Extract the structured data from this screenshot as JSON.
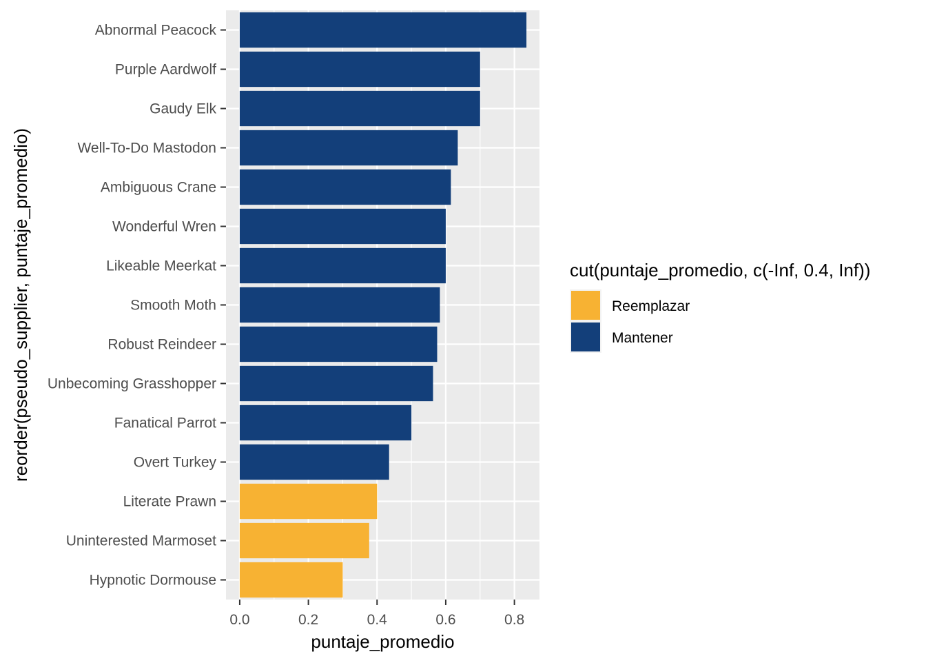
{
  "chart_data": {
    "type": "bar",
    "orientation": "horizontal",
    "categories": [
      "Abnormal Peacock",
      "Purple Aardwolf",
      "Gaudy Elk",
      "Well-To-Do Mastodon",
      "Ambiguous Crane",
      "Wonderful Wren",
      "Likeable Meerkat",
      "Smooth Moth",
      "Robust Reindeer",
      "Unbecoming Grasshopper",
      "Fanatical Parrot",
      "Overt Turkey",
      "Literate Prawn",
      "Uninterested Marmoset",
      "Hypnotic Dormouse"
    ],
    "values": [
      0.835,
      0.7,
      0.7,
      0.635,
      0.615,
      0.6,
      0.6,
      0.583,
      0.575,
      0.563,
      0.5,
      0.435,
      0.4,
      0.377,
      0.3
    ],
    "groups": [
      "Mantener",
      "Mantener",
      "Mantener",
      "Mantener",
      "Mantener",
      "Mantener",
      "Mantener",
      "Mantener",
      "Mantener",
      "Mantener",
      "Mantener",
      "Mantener",
      "Reemplazar",
      "Reemplazar",
      "Reemplazar"
    ],
    "xlabel": "puntaje_promedio",
    "ylabel": "reorder(pseudo_supplier, puntaje_promedio)",
    "xlim": [
      -0.04,
      0.873
    ],
    "xticks": [
      0.0,
      0.2,
      0.4,
      0.6,
      0.8
    ],
    "xtick_labels": [
      "0.0",
      "0.2",
      "0.4",
      "0.6",
      "0.8"
    ],
    "grid": true,
    "panel_background": "#ebebeb",
    "legend": {
      "title": "cut(puntaje_promedio, c(-Inf, 0.4, Inf))",
      "placement": "right",
      "entries": [
        {
          "label": "Reemplazar",
          "color": "#f7b233"
        },
        {
          "label": "Mantener",
          "color": "#133f7a"
        }
      ]
    }
  }
}
